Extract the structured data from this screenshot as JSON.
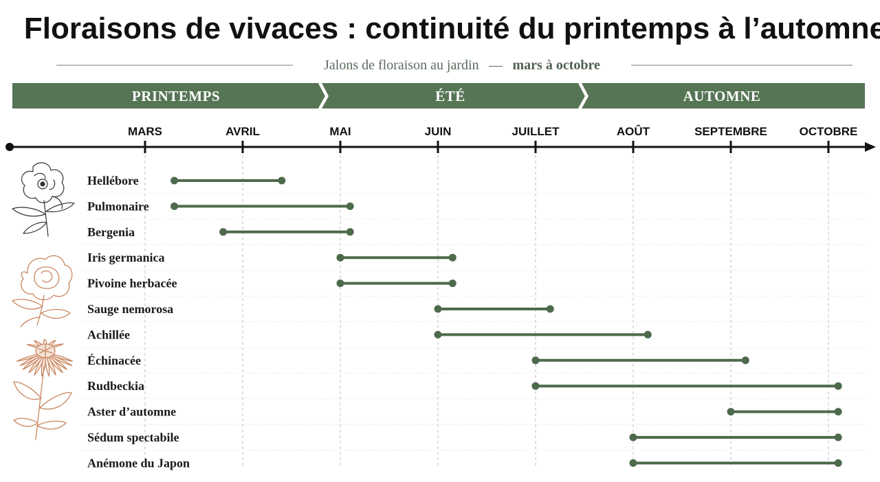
{
  "title": "Floraisons de vivaces : continuité du printemps à l’automne",
  "subtitle": {
    "text": "Jalons de floraison au jardin",
    "dash": "—",
    "range": "mars à octobre"
  },
  "colors": {
    "accent": "#50704f",
    "band": "#567555",
    "bar": "#4d6a4c",
    "axis": "#111111",
    "grid": "#c9c9c9",
    "illustration_dark": "#333333",
    "illustration_warm": "#c98660"
  },
  "seasons": [
    "PRINTEMPS",
    "ÉTÉ",
    "AUTOMNE"
  ],
  "chart_data": {
    "type": "timeline",
    "x_ticks": [
      "MARS",
      "AVRIL",
      "MAI",
      "JUIN",
      "JUILLET",
      "AOÛT",
      "SEPTEMBRE",
      "OCTOBRE"
    ],
    "x_unit": "month (MARS = 3 … OCTOBRE = 10)",
    "xlim": [
      1.6,
      10.5
    ],
    "grid": true,
    "series": [
      {
        "label": "Hellébore",
        "start": 3.3,
        "end": 4.4
      },
      {
        "label": "Pulmonaire",
        "start": 3.3,
        "end": 5.1
      },
      {
        "label": "Bergenia",
        "start": 3.8,
        "end": 5.1
      },
      {
        "label": "Iris germanica",
        "start": 5.0,
        "end": 6.15
      },
      {
        "label": "Pivoine herbacée",
        "start": 5.0,
        "end": 6.15
      },
      {
        "label": "Sauge nemorosa",
        "start": 6.0,
        "end": 7.15
      },
      {
        "label": "Achillée",
        "start": 6.0,
        "end": 8.15
      },
      {
        "label": "Échinacée",
        "start": 7.0,
        "end": 9.15
      },
      {
        "label": "Rudbeckia",
        "start": 7.0,
        "end": 10.1
      },
      {
        "label": "Aster d’automne",
        "start": 9.0,
        "end": 10.1
      },
      {
        "label": "Sédum spectabile",
        "start": 8.0,
        "end": 10.1
      },
      {
        "label": "Anémone du Japon",
        "start": 8.0,
        "end": 10.1
      }
    ]
  },
  "illustrations": [
    "hellebore-illustration",
    "peony-illustration",
    "echinacea-illustration"
  ]
}
